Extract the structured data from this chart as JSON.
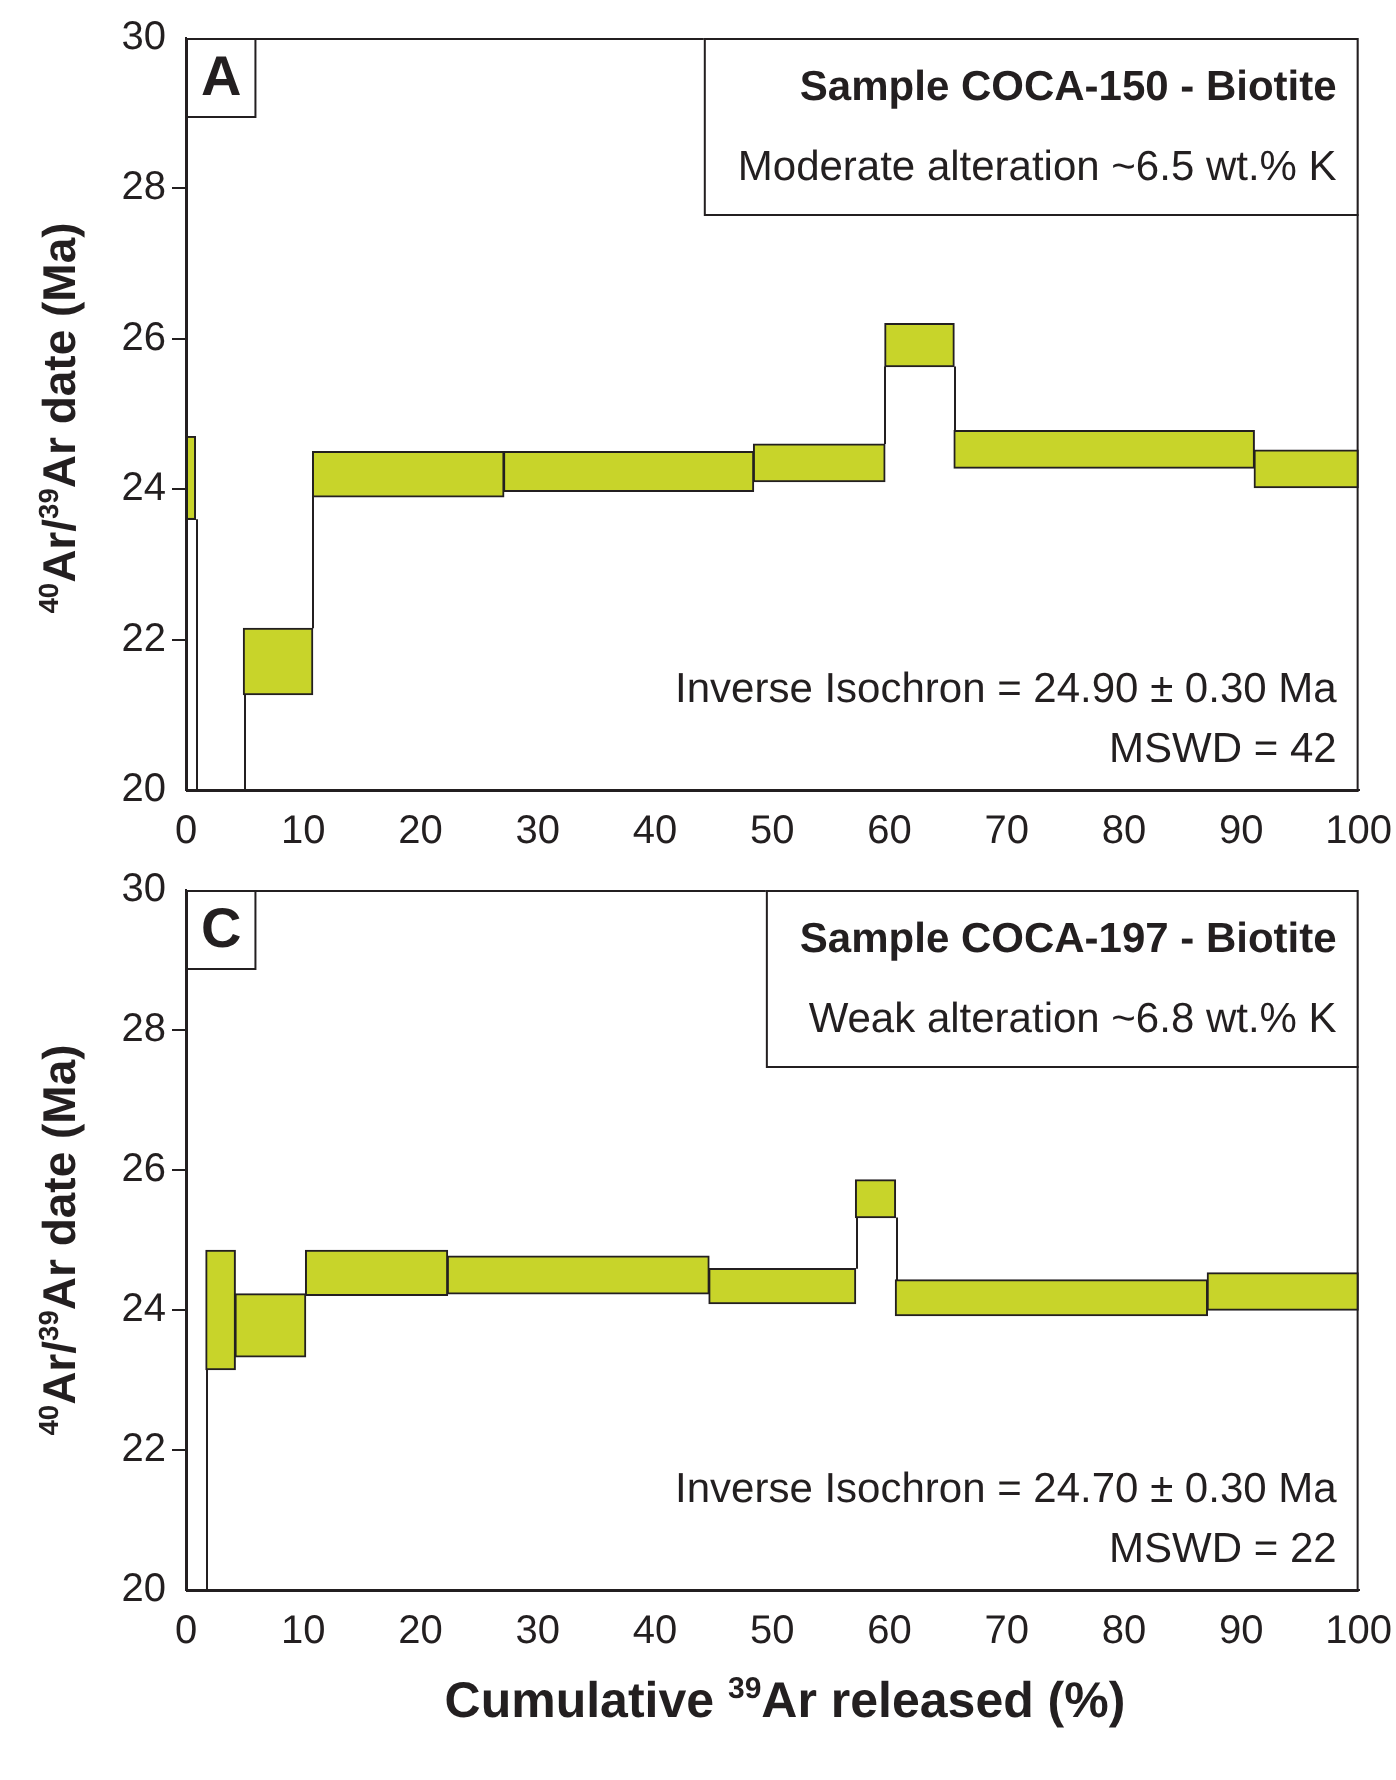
{
  "chart_data": [
    {
      "type": "histogram",
      "title": "Sample COCA-150 - Biotite",
      "subtitle": "Moderate alteration ~6.5 wt.% K",
      "ylabel": "$^{40}$Ar/$^{39}$Ar date (Ma)",
      "bins": [
        0,
        0.8,
        4.9,
        10.8,
        27.1,
        48.4,
        59.6,
        65.5,
        91.1,
        100
      ],
      "base": [
        23.6,
        null,
        21.27,
        23.9,
        23.97,
        24.1,
        25.63,
        24.28,
        24.02
      ],
      "values": [
        1.1,
        null,
        0.88,
        0.6,
        0.53,
        0.5,
        0.57,
        0.5,
        0.5
      ],
      "color": "#c8d42a",
      "xlim": [
        0,
        100
      ],
      "xticks": [
        0,
        10,
        20,
        30,
        40,
        50,
        60,
        70,
        80,
        90,
        100
      ],
      "ylim": [
        20,
        30
      ],
      "yticks": [
        20,
        22,
        24,
        26,
        28,
        30
      ],
      "annotations": [
        "A",
        "Inverse Isochron = 24.90 ± 0.30 Ma",
        "MSWD = 42"
      ],
      "grid": false,
      "legend": false
    },
    {
      "type": "histogram",
      "title": "Sample COCA-197 - Biotite",
      "subtitle": "Weak alteration ~6.8 wt.% K",
      "ylabel": "$^{40}$Ar/$^{39}$Ar date (Ma)",
      "xlabel": "Cumulative $^{39}$Ar released (%)",
      "bins": [
        1.7,
        4.2,
        10.2,
        22.3,
        44.6,
        57.1,
        60.5,
        87.1,
        100
      ],
      "base": [
        23.15,
        23.33,
        24.21,
        24.23,
        24.09,
        25.32,
        23.92,
        24.0
      ],
      "values": [
        1.7,
        0.9,
        0.64,
        0.54,
        0.5,
        0.54,
        0.51,
        0.53
      ],
      "color": "#c8d42a",
      "xlim": [
        0,
        100
      ],
      "xticks": [
        0,
        10,
        20,
        30,
        40,
        50,
        60,
        70,
        80,
        90,
        100
      ],
      "ylim": [
        20,
        30
      ],
      "yticks": [
        20,
        22,
        24,
        26,
        28,
        30
      ],
      "annotations": [
        "C",
        "Inverse Isochron = 24.70 ± 0.30 Ma",
        "MSWD = 22"
      ],
      "grid": false,
      "legend": false
    }
  ]
}
